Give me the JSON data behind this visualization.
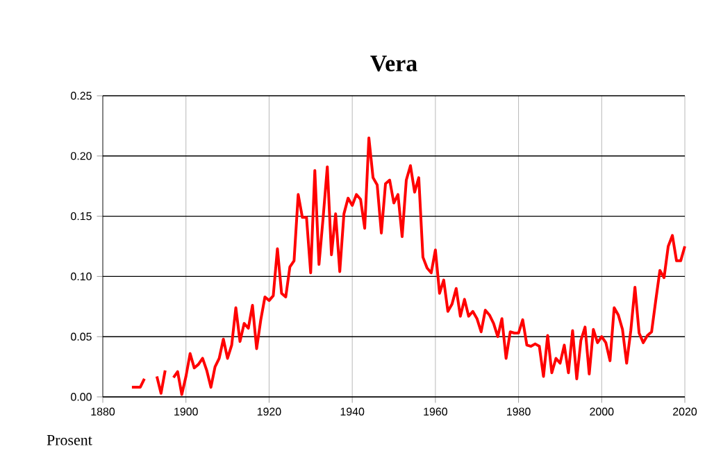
{
  "chart_data": {
    "type": "line",
    "title": "Vera",
    "ylabel": "Prosent",
    "x": [
      1887,
      1888,
      1889,
      1890,
      1891,
      1892,
      1893,
      1894,
      1895,
      1896,
      1897,
      1898,
      1899,
      1900,
      1901,
      1902,
      1903,
      1904,
      1905,
      1906,
      1907,
      1908,
      1909,
      1910,
      1911,
      1912,
      1913,
      1914,
      1915,
      1916,
      1917,
      1918,
      1919,
      1920,
      1921,
      1922,
      1923,
      1924,
      1925,
      1926,
      1927,
      1928,
      1929,
      1930,
      1931,
      1932,
      1933,
      1934,
      1935,
      1936,
      1937,
      1938,
      1939,
      1940,
      1941,
      1942,
      1943,
      1944,
      1945,
      1946,
      1947,
      1948,
      1949,
      1950,
      1951,
      1952,
      1953,
      1954,
      1955,
      1956,
      1957,
      1958,
      1959,
      1960,
      1961,
      1962,
      1963,
      1964,
      1965,
      1966,
      1967,
      1968,
      1969,
      1970,
      1971,
      1972,
      1973,
      1974,
      1975,
      1976,
      1977,
      1978,
      1979,
      1980,
      1981,
      1982,
      1983,
      1984,
      1985,
      1986,
      1987,
      1988,
      1989,
      1990,
      1991,
      1992,
      1993,
      1994,
      1995,
      1996,
      1997,
      1998,
      1999,
      2000,
      2001,
      2002,
      2003,
      2004,
      2005,
      2006,
      2007,
      2008,
      2009,
      2010,
      2011,
      2012,
      2013,
      2014,
      2015,
      2016,
      2017,
      2018,
      2019,
      2020
    ],
    "series": [
      {
        "color": "#ff0000",
        "values": [
          0.008,
          0.008,
          0.008,
          0.015,
          null,
          null,
          0.017,
          0.003,
          0.022,
          null,
          0.016,
          0.021,
          0.002,
          0.017,
          0.036,
          0.024,
          0.027,
          0.032,
          0.022,
          0.008,
          0.025,
          0.032,
          0.048,
          0.032,
          0.043,
          0.074,
          0.046,
          0.061,
          0.057,
          0.076,
          0.04,
          0.064,
          0.083,
          0.08,
          0.084,
          0.123,
          0.086,
          0.083,
          0.108,
          0.113,
          0.168,
          0.149,
          0.149,
          0.103,
          0.188,
          0.11,
          0.149,
          0.191,
          0.118,
          0.152,
          0.104,
          0.152,
          0.165,
          0.159,
          0.168,
          0.164,
          0.14,
          0.215,
          0.182,
          0.176,
          0.136,
          0.177,
          0.18,
          0.161,
          0.168,
          0.133,
          0.18,
          0.192,
          0.17,
          0.182,
          0.116,
          0.107,
          0.103,
          0.122,
          0.086,
          0.097,
          0.071,
          0.077,
          0.09,
          0.067,
          0.081,
          0.067,
          0.071,
          0.065,
          0.054,
          0.072,
          0.068,
          0.061,
          0.05,
          0.065,
          0.032,
          0.054,
          0.053,
          0.053,
          0.064,
          0.043,
          0.042,
          0.044,
          0.042,
          0.017,
          0.051,
          0.02,
          0.032,
          0.028,
          0.043,
          0.02,
          0.055,
          0.015,
          0.047,
          0.058,
          0.019,
          0.056,
          0.045,
          0.05,
          0.045,
          0.03,
          0.074,
          0.068,
          0.056,
          0.028,
          0.055,
          0.091,
          0.053,
          0.045,
          0.051,
          0.054,
          0.08,
          0.105,
          0.099,
          0.125,
          0.134,
          0.113,
          0.113,
          0.125
        ]
      }
    ],
    "xlim": [
      1880,
      2020
    ],
    "ylim": [
      0,
      0.25
    ],
    "xticks": [
      1880,
      1900,
      1920,
      1940,
      1960,
      1980,
      2000,
      2020
    ],
    "yticks": [
      {
        "value": 0,
        "label": "0.00"
      },
      {
        "value": 0.05,
        "label": "0.05"
      },
      {
        "value": 0.1,
        "label": "0.10"
      },
      {
        "value": 0.15,
        "label": "0.15"
      },
      {
        "value": 0.2,
        "label": "0.20"
      },
      {
        "value": 0.25,
        "label": "0.25"
      }
    ],
    "grid": true,
    "legend": false,
    "marker": "none",
    "line_style": "solid"
  }
}
